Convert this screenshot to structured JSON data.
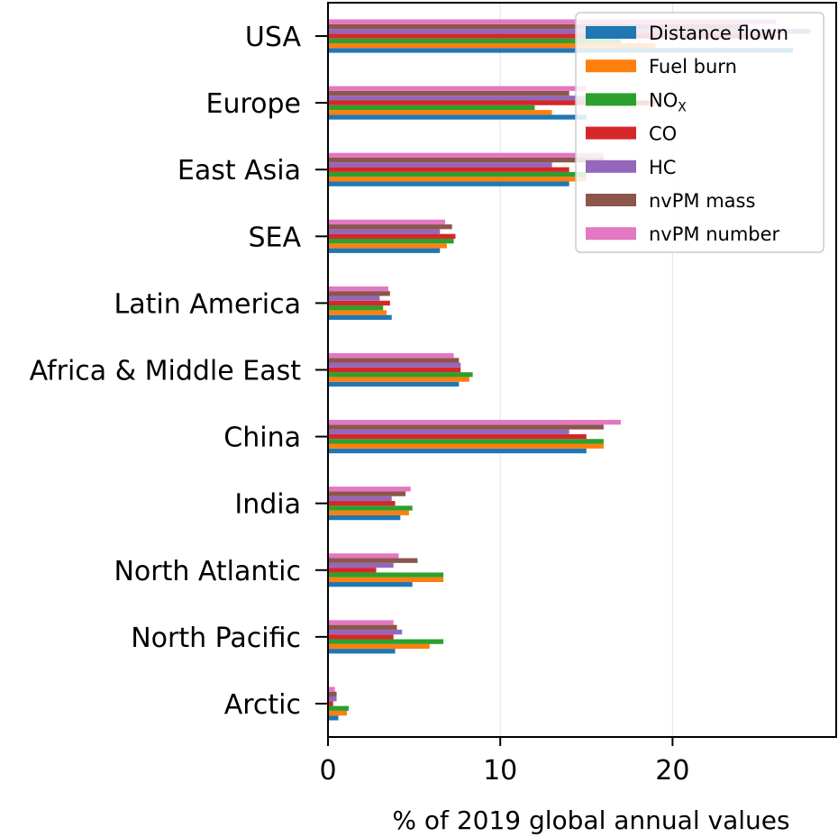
{
  "chart_data": {
    "type": "bar",
    "orientation": "horizontal",
    "title": "",
    "xlabel": "% of 2019 global annual values",
    "ylabel": "",
    "xlim": [
      0,
      29.5
    ],
    "xticks": [
      0,
      10,
      20
    ],
    "grid": "vertical gridlines at major ticks",
    "legend_position": "top-right",
    "categories": [
      "Arctic",
      "North Pacific",
      "North Atlantic",
      "India",
      "China",
      "Africa & Middle East",
      "Latin America",
      "SEA",
      "East Asia",
      "Europe",
      "USA"
    ],
    "series": [
      {
        "name": "Distance flown",
        "color": "#1f77b4",
        "values": [
          0.6,
          3.9,
          4.9,
          4.2,
          15,
          7.6,
          3.7,
          6.5,
          14,
          15,
          27
        ]
      },
      {
        "name": "Fuel burn",
        "color": "#ff7f0e",
        "values": [
          1.1,
          5.9,
          6.7,
          4.7,
          16,
          8.2,
          3.4,
          6.9,
          15,
          13,
          19
        ]
      },
      {
        "name": "NO",
        "name_sub": "X",
        "color": "#2ca02c",
        "values": [
          1.2,
          6.7,
          6.7,
          4.9,
          16,
          8.4,
          3.2,
          7.3,
          15,
          12,
          17
        ]
      },
      {
        "name": "CO",
        "color": "#d62728",
        "values": [
          0.3,
          3.8,
          2.8,
          3.9,
          15,
          7.7,
          3.6,
          7.4,
          14,
          19,
          26
        ]
      },
      {
        "name": "HC",
        "color": "#9467bd",
        "values": [
          0.5,
          4.3,
          3.8,
          3.7,
          14,
          7.7,
          3.0,
          6.5,
          13,
          17,
          28
        ]
      },
      {
        "name": "nvPM mass",
        "color": "#8c564b",
        "values": [
          0.5,
          4.0,
          5.2,
          4.5,
          16,
          7.6,
          3.6,
          7.2,
          16,
          14,
          24
        ]
      },
      {
        "name": "nvPM number",
        "color": "#e377c2",
        "values": [
          0.4,
          3.8,
          4.1,
          4.8,
          17,
          7.3,
          3.5,
          6.8,
          16,
          15,
          26
        ]
      }
    ]
  }
}
